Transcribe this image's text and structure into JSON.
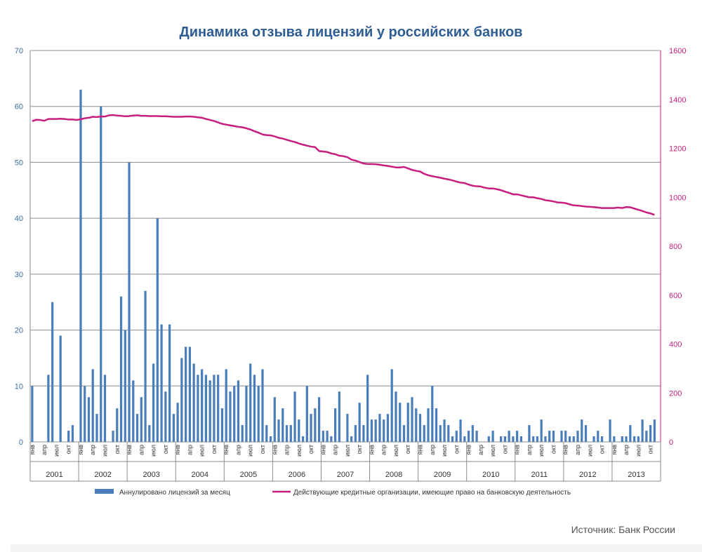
{
  "chart_data": {
    "type": "bar+line",
    "title": "Динамика отзыва лицензий у российских банков",
    "ylim_left": [
      0,
      70
    ],
    "yticks_left": [
      "0",
      "10",
      "20",
      "30",
      "40",
      "50",
      "60",
      "70"
    ],
    "ylim_right": [
      0,
      1600
    ],
    "yticks_right": [
      "0",
      "200",
      "400",
      "600",
      "800",
      "1000",
      "1200",
      "1400",
      "1600"
    ],
    "years": [
      "2001",
      "2002",
      "2003",
      "2004",
      "2005",
      "2006",
      "2007",
      "2008",
      "2009",
      "2010",
      "2011",
      "2012",
      "2013"
    ],
    "month_labels": [
      "янв",
      "апр",
      "июл",
      "окт"
    ],
    "grid": "horizontal",
    "legend_position": "bottom",
    "series": [
      {
        "name": "Аннулировано лицензий за месяц",
        "type": "bar",
        "axis": "left",
        "color": "#4a7ebb",
        "values": [
          10,
          0,
          0,
          0,
          12,
          25,
          0,
          19,
          0,
          2,
          3,
          0,
          63,
          10,
          8,
          13,
          5,
          60,
          12,
          0,
          2,
          6,
          26,
          20,
          50,
          11,
          5,
          8,
          27,
          3,
          14,
          40,
          21,
          9,
          21,
          5,
          7,
          15,
          17,
          17,
          14,
          12,
          13,
          12,
          11,
          12,
          12,
          6,
          13,
          9,
          10,
          11,
          3,
          10,
          14,
          12,
          10,
          13,
          3,
          1,
          8,
          4,
          6,
          3,
          3,
          9,
          4,
          1,
          10,
          5,
          6,
          8,
          2,
          2,
          1,
          6,
          9,
          0,
          5,
          1,
          3,
          7,
          3,
          12,
          4,
          4,
          5,
          4,
          5,
          13,
          9,
          7,
          3,
          7,
          8,
          6,
          5,
          3,
          6,
          10,
          6,
          3,
          4,
          3,
          1,
          2,
          4,
          1,
          2,
          3,
          2,
          0,
          0,
          1,
          2,
          0,
          1,
          1,
          2,
          1,
          2,
          1,
          0,
          3,
          1,
          1,
          4,
          1,
          2,
          2,
          0,
          2,
          2,
          1,
          1,
          2,
          4,
          3,
          0,
          1,
          2,
          1,
          0,
          4,
          1,
          0,
          1,
          1,
          3,
          1,
          1,
          4,
          2,
          3,
          4
        ]
      },
      {
        "name": "Действующие кредитные организации, имеющие право на банковскую деятельность",
        "type": "line",
        "axis": "right",
        "color": "#c81d7e",
        "values": [
          1311,
          1317,
          1316,
          1313,
          1320,
          1320,
          1320,
          1321,
          1320,
          1318,
          1318,
          1316,
          1319,
          1323,
          1325,
          1329,
          1328,
          1330,
          1330,
          1335,
          1336,
          1334,
          1333,
          1331,
          1332,
          1334,
          1335,
          1333,
          1333,
          1332,
          1332,
          1332,
          1331,
          1331,
          1330,
          1329,
          1329,
          1329,
          1330,
          1330,
          1329,
          1327,
          1325,
          1320,
          1316,
          1312,
          1306,
          1300,
          1297,
          1294,
          1291,
          1288,
          1286,
          1282,
          1277,
          1270,
          1264,
          1257,
          1254,
          1253,
          1249,
          1243,
          1240,
          1235,
          1230,
          1226,
          1220,
          1215,
          1211,
          1207,
          1205,
          1189,
          1187,
          1185,
          1179,
          1176,
          1170,
          1168,
          1164,
          1154,
          1150,
          1144,
          1138,
          1136,
          1136,
          1135,
          1133,
          1130,
          1128,
          1125,
          1122,
          1122,
          1124,
          1118,
          1112,
          1108,
          1105,
          1096,
          1090,
          1086,
          1083,
          1080,
          1076,
          1073,
          1069,
          1064,
          1060,
          1058,
          1052,
          1047,
          1045,
          1044,
          1039,
          1036,
          1036,
          1033,
          1029,
          1023,
          1018,
          1012,
          1012,
          1008,
          1004,
          1000,
          1000,
          996,
          993,
          988,
          986,
          983,
          979,
          978,
          976,
          971,
          967,
          966,
          964,
          962,
          961,
          960,
          958,
          956,
          956,
          956,
          956,
          958,
          956,
          960,
          959,
          954,
          949,
          944,
          938,
          934,
          928
        ]
      }
    ]
  },
  "source": "Источник: Банк России"
}
